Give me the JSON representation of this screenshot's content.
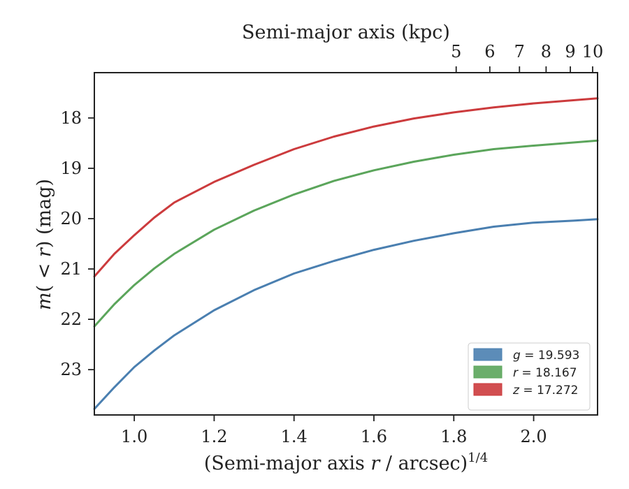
{
  "chart_data": {
    "type": "line",
    "xlabel_parts": [
      "(Semi-major axis ",
      "r",
      " / arcsec)",
      "1/4"
    ],
    "top_xlabel": "Semi-major axis (kpc)",
    "ylabel_parts": [
      "m",
      "( < ",
      "r",
      ") (mag)"
    ],
    "xlim": [
      0.9,
      2.16
    ],
    "ylim": [
      23.9,
      17.1
    ],
    "y_inverted": true,
    "x_ticks": [
      1.0,
      1.2,
      1.4,
      1.6,
      1.8,
      2.0
    ],
    "x_tick_labels": [
      "1.0",
      "1.2",
      "1.4",
      "1.6",
      "1.8",
      "2.0"
    ],
    "y_ticks": [
      18,
      19,
      20,
      21,
      22,
      23
    ],
    "y_tick_labels": [
      "18",
      "19",
      "20",
      "21",
      "22",
      "23"
    ],
    "top_x_ticks_kpc": [
      5,
      6,
      7,
      8,
      9,
      10
    ],
    "top_x_tick_labels": [
      "5",
      "6",
      "7",
      "8",
      "9",
      "10"
    ],
    "grid": false,
    "legend_position": "lower-right",
    "series": [
      {
        "band": "g",
        "label_value": "= 19.593",
        "color": "#4a7fb0",
        "x": [
          0.9,
          0.95,
          1.0,
          1.05,
          1.1,
          1.2,
          1.3,
          1.4,
          1.5,
          1.6,
          1.7,
          1.8,
          1.9,
          2.0,
          2.1,
          2.16
        ],
        "y": [
          23.78,
          23.35,
          22.95,
          22.62,
          22.32,
          21.82,
          21.42,
          21.09,
          20.84,
          20.62,
          20.44,
          20.29,
          20.16,
          20.08,
          20.04,
          20.01
        ]
      },
      {
        "band": "r",
        "label_value": "= 18.167",
        "color": "#5ba55b",
        "x": [
          0.9,
          0.95,
          1.0,
          1.05,
          1.1,
          1.2,
          1.3,
          1.4,
          1.5,
          1.6,
          1.7,
          1.8,
          1.9,
          2.0,
          2.08,
          2.16
        ],
        "y": [
          22.14,
          21.7,
          21.32,
          20.99,
          20.7,
          20.22,
          19.84,
          19.52,
          19.25,
          19.04,
          18.87,
          18.73,
          18.62,
          18.55,
          18.5,
          18.45
        ]
      },
      {
        "band": "z",
        "label_value": "= 17.272",
        "color": "#cc3b3d",
        "x": [
          0.9,
          0.95,
          1.0,
          1.05,
          1.1,
          1.2,
          1.3,
          1.4,
          1.5,
          1.6,
          1.7,
          1.8,
          1.9,
          2.0,
          2.08,
          2.16
        ],
        "y": [
          21.15,
          20.7,
          20.33,
          19.98,
          19.68,
          19.27,
          18.93,
          18.62,
          18.37,
          18.17,
          18.01,
          17.89,
          17.79,
          17.71,
          17.66,
          17.61
        ]
      }
    ]
  }
}
